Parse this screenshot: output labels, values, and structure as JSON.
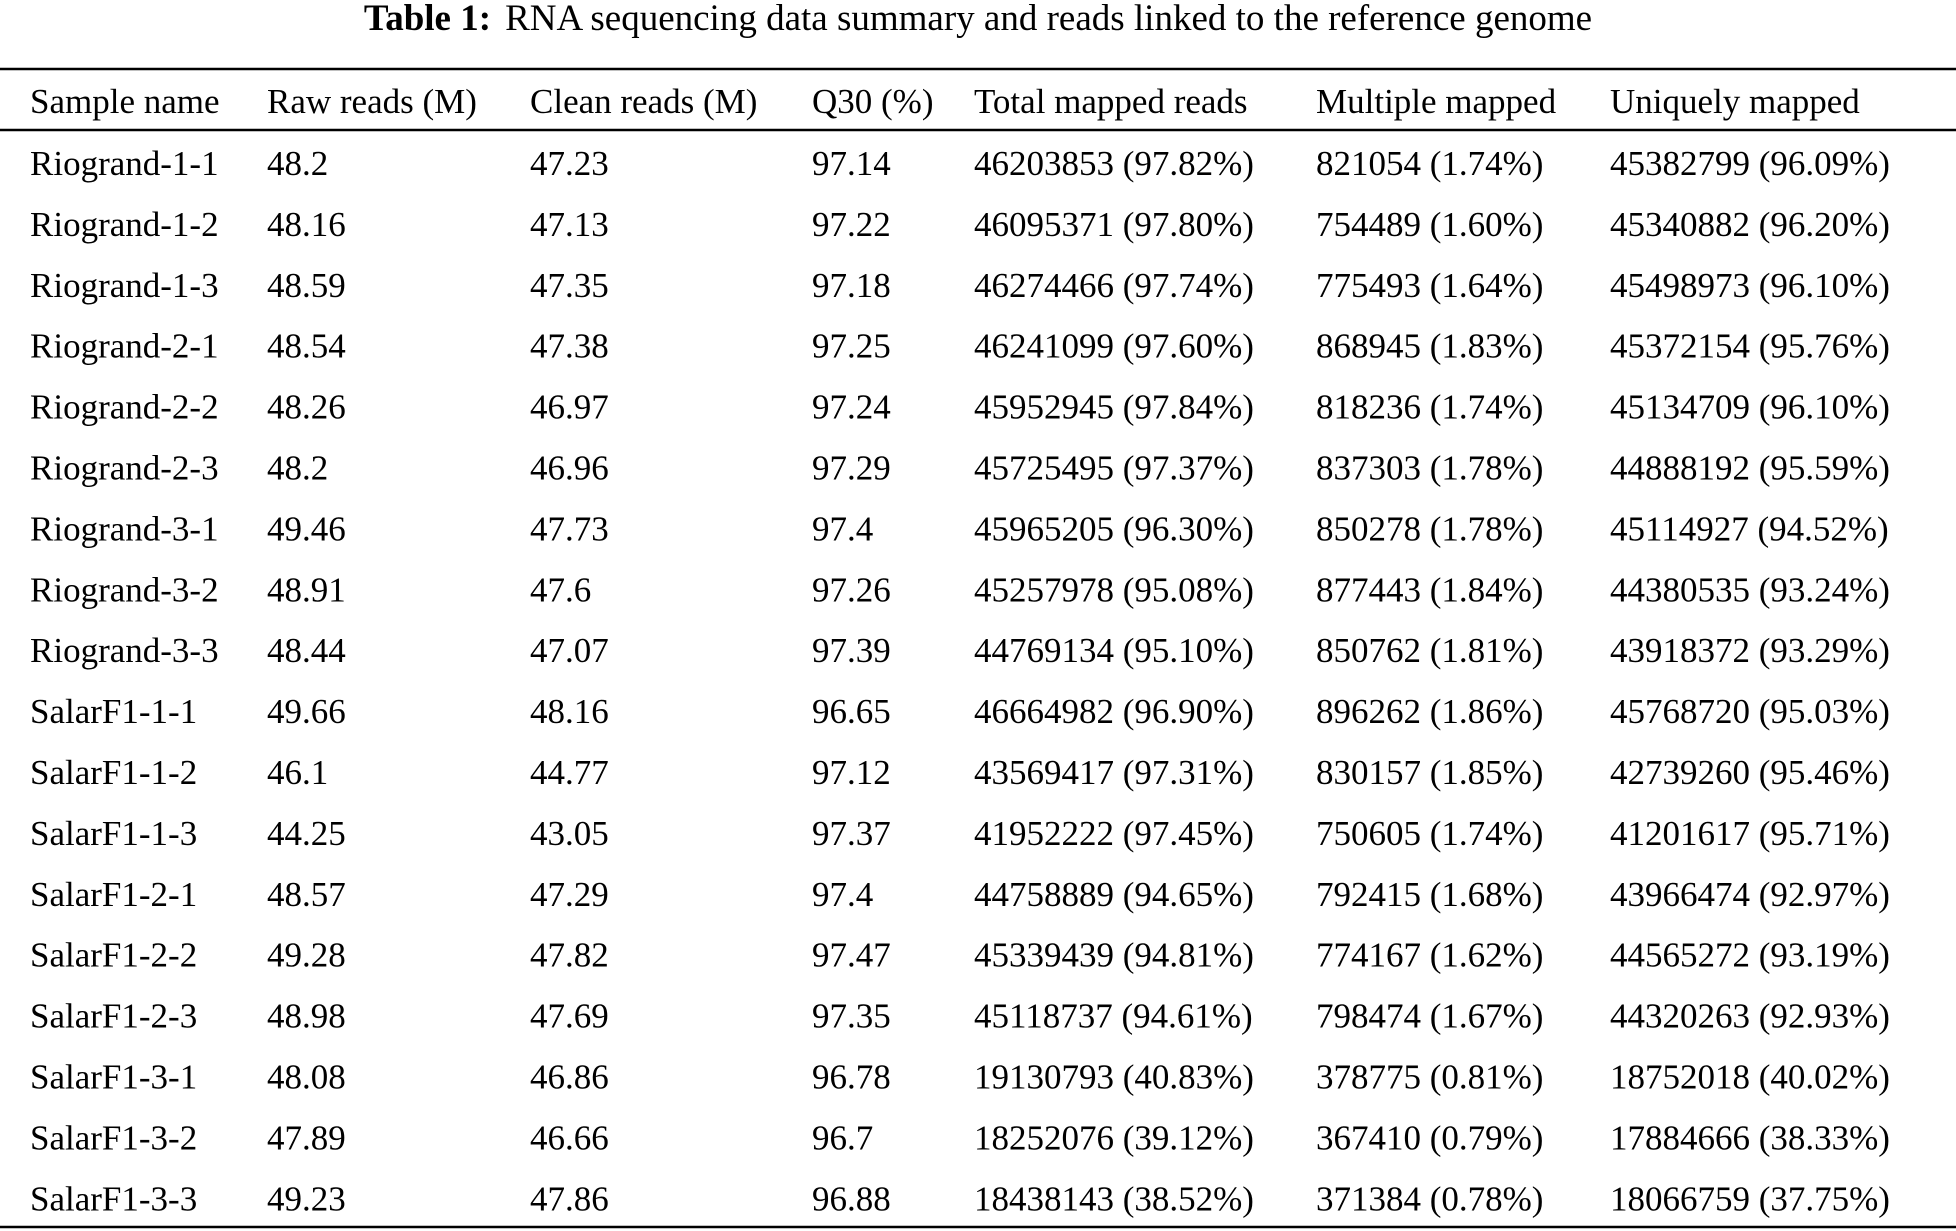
{
  "title": {
    "label": "Table 1:",
    "text": "RNA sequencing data summary and reads linked to the reference genome"
  },
  "table": {
    "header": [
      "Sample name",
      "Raw reads (M)",
      "Clean reads (M)",
      "Q30 (%)",
      "Total mapped reads",
      "Multiple mapped",
      "Uniquely mapped"
    ],
    "rows": [
      [
        "Riogrand-1-1",
        "48.2",
        "47.23",
        "97.14",
        "46203853 (97.82%)",
        "821054 (1.74%)",
        "45382799 (96.09%)"
      ],
      [
        "Riogrand-1-2",
        "48.16",
        "47.13",
        "97.22",
        "46095371 (97.80%)",
        "754489 (1.60%)",
        "45340882 (96.20%)"
      ],
      [
        "Riogrand-1-3",
        "48.59",
        "47.35",
        "97.18",
        "46274466 (97.74%)",
        "775493 (1.64%)",
        "45498973 (96.10%)"
      ],
      [
        "Riogrand-2-1",
        "48.54",
        "47.38",
        "97.25",
        "46241099 (97.60%)",
        "868945 (1.83%)",
        "45372154 (95.76%)"
      ],
      [
        "Riogrand-2-2",
        "48.26",
        "46.97",
        "97.24",
        "45952945 (97.84%)",
        "818236 (1.74%)",
        "45134709 (96.10%)"
      ],
      [
        "Riogrand-2-3",
        "48.2",
        "46.96",
        "97.29",
        "45725495 (97.37%)",
        "837303 (1.78%)",
        "44888192 (95.59%)"
      ],
      [
        "Riogrand-3-1",
        "49.46",
        "47.73",
        "97.4",
        "45965205 (96.30%)",
        "850278 (1.78%)",
        "45114927 (94.52%)"
      ],
      [
        "Riogrand-3-2",
        "48.91",
        "47.6",
        "97.26",
        "45257978 (95.08%)",
        "877443 (1.84%)",
        "44380535 (93.24%)"
      ],
      [
        "Riogrand-3-3",
        "48.44",
        "47.07",
        "97.39",
        "44769134 (95.10%)",
        "850762 (1.81%)",
        "43918372 (93.29%)"
      ],
      [
        "SalarF1-1-1",
        "49.66",
        "48.16",
        "96.65",
        "46664982 (96.90%)",
        "896262 (1.86%)",
        "45768720 (95.03%)"
      ],
      [
        "SalarF1-1-2",
        "46.1",
        "44.77",
        "97.12",
        "43569417 (97.31%)",
        "830157 (1.85%)",
        "42739260 (95.46%)"
      ],
      [
        "SalarF1-1-3",
        "44.25",
        "43.05",
        "97.37",
        "41952222 (97.45%)",
        "750605 (1.74%)",
        "41201617 (95.71%)"
      ],
      [
        "SalarF1-2-1",
        "48.57",
        "47.29",
        "97.4",
        "44758889 (94.65%)",
        "792415 (1.68%)",
        "43966474 (92.97%)"
      ],
      [
        "SalarF1-2-2",
        "49.28",
        "47.82",
        "97.47",
        "45339439 (94.81%)",
        "774167 (1.62%)",
        "44565272 (93.19%)"
      ],
      [
        "SalarF1-2-3",
        "48.98",
        "47.69",
        "97.35",
        "45118737 (94.61%)",
        "798474 (1.67%)",
        "44320263 (92.93%)"
      ],
      [
        "SalarF1-3-1",
        "48.08",
        "46.86",
        "96.78",
        "19130793 (40.83%)",
        "378775 (0.81%)",
        "18752018 (40.02%)"
      ],
      [
        "SalarF1-3-2",
        "47.89",
        "46.66",
        "96.7",
        "18252076 (39.12%)",
        "367410 (0.79%)",
        "17884666 (38.33%)"
      ],
      [
        "SalarF1-3-3",
        "49.23",
        "47.86",
        "96.88",
        "18438143 (38.52%)",
        "371384 (0.78%)",
        "18066759 (37.75%)"
      ]
    ]
  }
}
